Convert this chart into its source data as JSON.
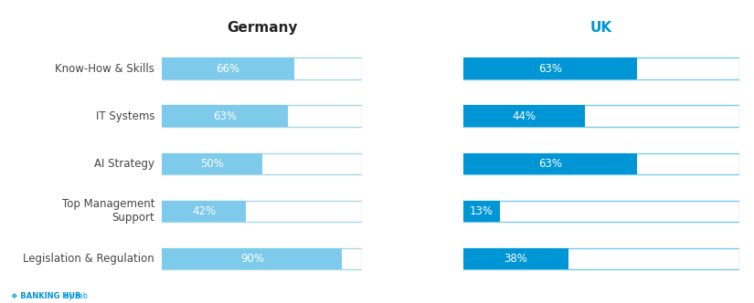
{
  "categories": [
    "Know-How & Skills",
    "IT Systems",
    "AI Strategy",
    "Top Management\nSupport",
    "Legislation & Regulation"
  ],
  "germany_values": [
    66,
    63,
    50,
    42,
    90
  ],
  "uk_values": [
    63,
    44,
    63,
    13,
    38
  ],
  "bar_max": 100,
  "germany_fill_color": "#7DCAEA",
  "germany_empty_color": "#FFFFFF",
  "germany_border_color": "#A8D8EA",
  "uk_fill_color": "#0096D6",
  "uk_empty_color": "#FFFFFF",
  "uk_border_color": "#7DCAEA",
  "germany_label": "Germany",
  "uk_label": "UK",
  "uk_label_color": "#0096D6",
  "germany_label_color": "#222222",
  "text_color_filled": "#FFFFFF",
  "background_color": "#FFFFFF",
  "bar_height": 0.45,
  "fontsize_labels": 8.5,
  "fontsize_pct": 8.5,
  "fontsize_title": 11,
  "footer_text": "BANKING HUB",
  "footer_subtext": "by zeb"
}
